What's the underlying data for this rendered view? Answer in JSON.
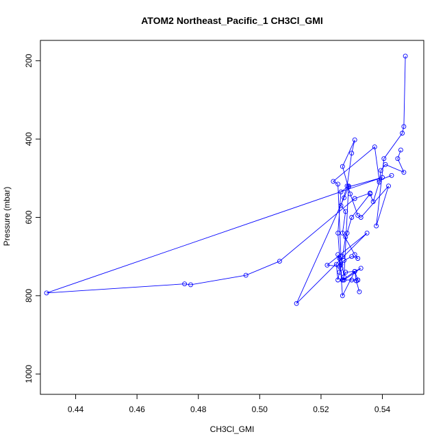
{
  "chart_data": {
    "type": "line",
    "title": "ATOM2 Northeast_Pacific_1 CH3Cl_GMI",
    "xlabel": "CH3Cl_GMI",
    "ylabel": "Pressure (mbar)",
    "xlim": [
      0.4285,
      0.5535
    ],
    "ylim": [
      1052,
      148
    ],
    "y_reversed": true,
    "grid": false,
    "x_ticks": [
      0.44,
      0.46,
      0.48,
      0.5,
      0.52,
      0.54
    ],
    "x_tick_labels": [
      "0.44",
      "0.46",
      "0.48",
      "0.50",
      "0.52",
      "0.54"
    ],
    "y_ticks": [
      200,
      400,
      600,
      800,
      1000
    ],
    "y_tick_labels": [
      "200",
      "400",
      "600",
      "800",
      "1000"
    ],
    "series_color": "#0000ff",
    "series": [
      {
        "x": [
          0.5475,
          0.547,
          0.5465,
          0.5405,
          0.538,
          0.542,
          0.533,
          0.532,
          0.5295,
          0.527,
          0.531,
          0.53,
          0.5285,
          0.5265,
          0.528,
          0.527,
          0.531,
          0.532,
          0.53,
          0.5275,
          0.5265,
          0.526,
          0.5255,
          0.527,
          0.528,
          0.531,
          0.5315,
          0.5325
        ],
        "y": [
          188,
          368,
          385,
          450,
          622,
          520,
          600,
          595,
          540,
          470,
          402,
          436,
          520,
          570,
          585,
          640,
          695,
          705,
          700,
          710,
          720,
          705,
          695,
          760,
          740,
          738,
          762,
          790
        ]
      },
      {
        "x": [
          0.543,
          0.539,
          0.5375,
          0.524,
          0.5255,
          0.5265,
          0.5275,
          0.529,
          0.5265,
          0.5255,
          0.527,
          0.531,
          0.532,
          0.53,
          0.5275,
          0.533,
          0.531,
          0.527,
          0.532,
          0.5315
        ],
        "y": [
          493,
          505,
          420,
          508,
          515,
          700,
          752,
          520,
          535,
          640,
          800,
          738,
          760,
          760,
          760,
          730,
          738,
          760,
          760,
          762
        ]
      },
      {
        "x": [
          0.546,
          0.545,
          0.547,
          0.541,
          0.5395,
          0.539,
          0.537,
          0.536,
          0.53,
          0.5285,
          0.528,
          0.527,
          0.5265,
          0.526,
          0.5255,
          0.525
        ],
        "y": [
          428,
          450,
          485,
          465,
          480,
          510,
          560,
          540,
          600,
          640,
          650,
          700,
          730,
          740,
          760,
          720
        ]
      },
      {
        "x": [
          0.536,
          0.531,
          0.5065,
          0.4955,
          0.4775,
          0.4755,
          0.4305,
          0.54,
          0.529,
          0.5275,
          0.512,
          0.535,
          0.522,
          0.526
        ],
        "y": [
          538,
          552,
          712,
          748,
          772,
          770,
          793,
          498,
          522,
          550,
          820,
          640,
          722,
          725
        ]
      }
    ]
  }
}
